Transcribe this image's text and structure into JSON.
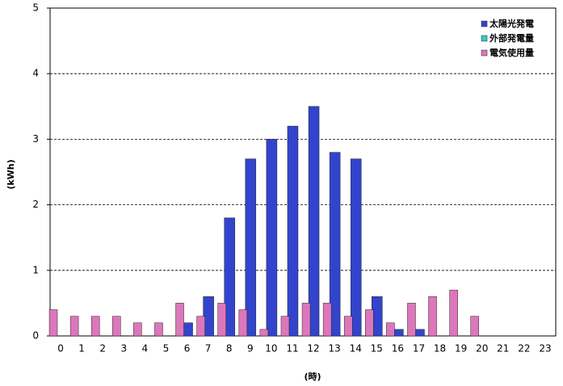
{
  "chart_data": {
    "type": "bar",
    "x_label": "(時)",
    "y_label": "(kWh)",
    "categories": [
      "0",
      "1",
      "2",
      "3",
      "4",
      "5",
      "6",
      "7",
      "8",
      "9",
      "10",
      "11",
      "12",
      "13",
      "14",
      "15",
      "16",
      "17",
      "18",
      "19",
      "20",
      "21",
      "22",
      "23"
    ],
    "series": [
      {
        "name": "太陽光発電",
        "color": "#3344cc",
        "values": [
          0,
          0,
          0,
          0,
          0,
          0,
          0.2,
          0.6,
          1.8,
          2.7,
          3.0,
          3.2,
          3.5,
          2.8,
          2.7,
          0.6,
          0.1,
          0.1,
          0,
          0,
          0,
          0,
          0,
          0
        ]
      },
      {
        "name": "外部発電量",
        "color": "#33cccc",
        "values": [
          0,
          0,
          0,
          0,
          0,
          0,
          0,
          0,
          0,
          0,
          0,
          0,
          0,
          0,
          0,
          0,
          0,
          0,
          0,
          0,
          0,
          0,
          0,
          0
        ]
      },
      {
        "name": "電気使用量",
        "color": "#dd77bb",
        "values": [
          0.4,
          0.3,
          0.3,
          0.3,
          0.2,
          0.2,
          0.5,
          0.3,
          0.5,
          0.4,
          0.1,
          0.3,
          0.5,
          0.5,
          0.3,
          0.4,
          0.2,
          0.5,
          0.6,
          0.7,
          0.3,
          0,
          0,
          0
        ]
      }
    ],
    "ylim": [
      0,
      5
    ],
    "yticks": [
      0,
      1,
      2,
      3,
      4,
      5
    ],
    "grid": true,
    "legend": "top-right"
  }
}
